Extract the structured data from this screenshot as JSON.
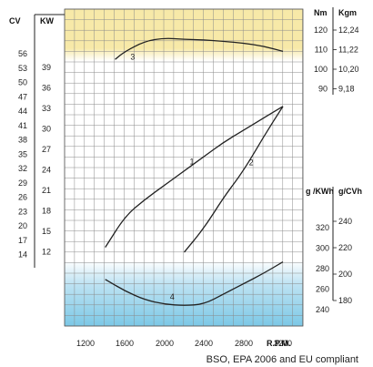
{
  "caption": "BSO, EPA 2006 and EU compliant",
  "colors": {
    "top_band": "#f7e9a8",
    "bottom_band": "#7cc8e6",
    "grid": "#8a8a8a",
    "line": "#222222"
  },
  "chart_data": {
    "type": "line",
    "x_axis": {
      "title": "R.P.M.",
      "ticks": [
        1200,
        1600,
        2000,
        2400,
        2800,
        3200
      ],
      "range": [
        1000,
        3400
      ]
    },
    "axes": {
      "cv": {
        "title": "CV",
        "ticks": [
          "56",
          "53",
          "50",
          "47",
          "44",
          "41",
          "38",
          "35",
          "32",
          "29",
          "26",
          "23",
          "20",
          "17",
          "14"
        ]
      },
      "kw": {
        "title": "KW",
        "ticks": [
          "39",
          "36",
          "33",
          "30",
          "27",
          "24",
          "21",
          "18",
          "15",
          "12"
        ]
      },
      "nm": {
        "title": "Nm",
        "ticks": [
          "120",
          "110",
          "100",
          "90"
        ]
      },
      "kgm": {
        "title": "Kgm",
        "ticks": [
          "12,24",
          "11,22",
          "10,20",
          "9,18"
        ]
      },
      "gkwh": {
        "title": "g /KWh",
        "ticks": [
          "320",
          "300",
          "280",
          "260",
          "240"
        ]
      },
      "gcvh": {
        "title": "g/CVh",
        "ticks": [
          "240",
          "220",
          "200",
          "180"
        ]
      }
    },
    "series": [
      {
        "label": "1",
        "x": [
          1400,
          1600,
          1800,
          2000,
          2200,
          2400,
          2600,
          2800,
          3000,
          3200
        ],
        "y": [
          15.5,
          22,
          25.5,
          28.5,
          31.5,
          34.5,
          37.5,
          40,
          42.5,
          45
        ]
      },
      {
        "label": "2",
        "x": [
          2200,
          2400,
          2600,
          2800,
          3000,
          3200
        ],
        "y": [
          14.5,
          19.5,
          26,
          31.5,
          38.5,
          45
        ]
      },
      {
        "label": "3",
        "x": [
          1500,
          1600,
          1800,
          2000,
          2200,
          2400,
          2600,
          2800,
          3000,
          3200
        ],
        "y": [
          54.8,
          56.5,
          58.6,
          59.3,
          59.0,
          58.9,
          58.6,
          58.2,
          57.6,
          56.5
        ]
      },
      {
        "label": "4",
        "x": [
          1400,
          1600,
          1800,
          2000,
          2200,
          2400,
          2600,
          2800,
          3000,
          3200
        ],
        "y": [
          11.2,
          10.4,
          9.8,
          9.5,
          9.4,
          9.5,
          10.2,
          10.9,
          11.6,
          12.4
        ]
      }
    ]
  }
}
